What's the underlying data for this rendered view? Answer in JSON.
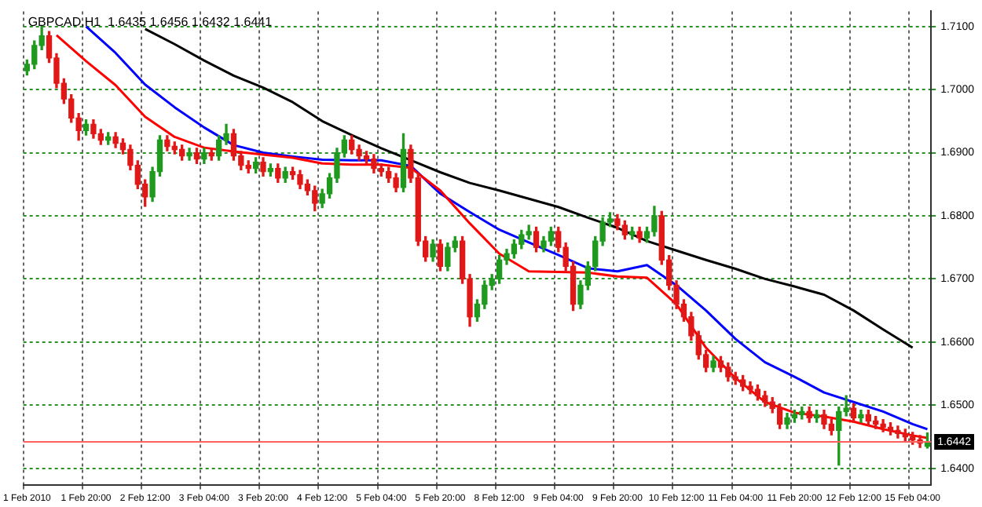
{
  "chart_data": {
    "type": "candlestick",
    "title": "GBPCAD,H1  1.6435 1.6456 1.6432 1.6441",
    "categories": [
      "1 Feb 2010",
      null,
      null,
      null,
      null,
      null,
      null,
      null,
      "1 Feb 20:00",
      null,
      null,
      null,
      null,
      null,
      null,
      null,
      "2 Feb 12:00",
      null,
      null,
      null,
      null,
      null,
      null,
      null,
      "3 Feb 04:00",
      null,
      null,
      null,
      null,
      null,
      null,
      null,
      "3 Feb 20:00",
      null,
      null,
      null,
      null,
      null,
      null,
      null,
      "4 Feb 12:00",
      null,
      null,
      null,
      null,
      null,
      null,
      null,
      "5 Feb 04:00",
      null,
      null,
      null,
      null,
      null,
      null,
      null,
      "5 Feb 20:00",
      null,
      null,
      null,
      null,
      null,
      null,
      null,
      "8 Feb 12:00",
      null,
      null,
      null,
      null,
      null,
      null,
      null,
      "9 Feb 04:00",
      null,
      null,
      null,
      null,
      null,
      null,
      null,
      "9 Feb 20:00",
      null,
      null,
      null,
      null,
      null,
      null,
      null,
      "10 Feb 12:00",
      null,
      null,
      null,
      null,
      null,
      null,
      null,
      "11 Feb 04:00",
      null,
      null,
      null,
      null,
      null,
      null,
      null,
      "11 Feb 20:00",
      null,
      null,
      null,
      null,
      null,
      null,
      null,
      "12 Feb 12:00",
      null,
      null,
      null,
      null,
      null,
      null,
      null,
      "15 Feb 04:00",
      null,
      null
    ],
    "ohlc": [
      [
        1.703,
        1.7047,
        1.7023,
        1.704
      ],
      [
        1.704,
        1.7077,
        1.7033,
        1.707
      ],
      [
        1.707,
        1.71,
        1.7063,
        1.7085
      ],
      [
        1.7085,
        1.7092,
        1.7043,
        1.705
      ],
      [
        1.705,
        1.7057,
        1.7003,
        1.701
      ],
      [
        1.701,
        1.7017,
        1.6978,
        1.6985
      ],
      [
        1.6985,
        1.6992,
        1.6948,
        1.6955
      ],
      [
        1.6955,
        1.6962,
        1.692,
        1.6935
      ],
      [
        1.6935,
        1.6952,
        1.6928,
        1.6945
      ],
      [
        1.6945,
        1.6952,
        1.6923,
        1.693
      ],
      [
        1.693,
        1.6937,
        1.6913,
        1.692
      ],
      [
        1.692,
        1.6932,
        1.6913,
        1.6925
      ],
      [
        1.6925,
        1.6932,
        1.6908,
        1.6915
      ],
      [
        1.6915,
        1.6922,
        1.6898,
        1.6905
      ],
      [
        1.6905,
        1.6912,
        1.6873,
        1.688
      ],
      [
        1.688,
        1.6887,
        1.6843,
        1.685
      ],
      [
        1.685,
        1.6857,
        1.6815,
        1.683
      ],
      [
        1.683,
        1.6877,
        1.6823,
        1.687
      ],
      [
        1.687,
        1.6927,
        1.6863,
        1.692
      ],
      [
        1.692,
        1.6927,
        1.6903,
        1.691
      ],
      [
        1.691,
        1.6917,
        1.6898,
        1.6905
      ],
      [
        1.6905,
        1.6912,
        1.6888,
        1.6895
      ],
      [
        1.6895,
        1.6907,
        1.6888,
        1.69
      ],
      [
        1.69,
        1.6907,
        1.6883,
        1.689
      ],
      [
        1.689,
        1.6907,
        1.6883,
        1.69
      ],
      [
        1.69,
        1.6907,
        1.6888,
        1.6895
      ],
      [
        1.6895,
        1.6927,
        1.6888,
        1.692
      ],
      [
        1.692,
        1.6945,
        1.6913,
        1.693
      ],
      [
        1.693,
        1.6937,
        1.6888,
        1.6895
      ],
      [
        1.6895,
        1.6902,
        1.6873,
        1.688
      ],
      [
        1.688,
        1.6887,
        1.6868,
        1.6875
      ],
      [
        1.6875,
        1.6892,
        1.6868,
        1.6885
      ],
      [
        1.6885,
        1.6892,
        1.6863,
        1.687
      ],
      [
        1.687,
        1.6882,
        1.6863,
        1.6875
      ],
      [
        1.6875,
        1.6882,
        1.6853,
        1.686
      ],
      [
        1.686,
        1.6877,
        1.6853,
        1.687
      ],
      [
        1.687,
        1.6877,
        1.6858,
        1.6865
      ],
      [
        1.6865,
        1.6872,
        1.6843,
        1.685
      ],
      [
        1.685,
        1.6857,
        1.6833,
        1.684
      ],
      [
        1.684,
        1.6847,
        1.6808,
        1.682
      ],
      [
        1.682,
        1.6842,
        1.6813,
        1.6835
      ],
      [
        1.6835,
        1.6867,
        1.6828,
        1.686
      ],
      [
        1.686,
        1.6907,
        1.6853,
        1.69
      ],
      [
        1.69,
        1.6927,
        1.6893,
        1.692
      ],
      [
        1.692,
        1.6927,
        1.6898,
        1.6905
      ],
      [
        1.6905,
        1.6912,
        1.6888,
        1.6895
      ],
      [
        1.6895,
        1.6902,
        1.6883,
        1.689
      ],
      [
        1.689,
        1.6897,
        1.6868,
        1.6875
      ],
      [
        1.6875,
        1.6882,
        1.6863,
        1.687
      ],
      [
        1.687,
        1.6877,
        1.6853,
        1.686
      ],
      [
        1.686,
        1.6867,
        1.6838,
        1.6845
      ],
      [
        1.6845,
        1.693,
        1.6838,
        1.6905
      ],
      [
        1.6905,
        1.6912,
        1.6853,
        1.686
      ],
      [
        1.686,
        1.6867,
        1.6753,
        1.676
      ],
      [
        1.676,
        1.6767,
        1.6728,
        1.6735
      ],
      [
        1.6735,
        1.6762,
        1.6728,
        1.6755
      ],
      [
        1.6755,
        1.6762,
        1.6713,
        1.672
      ],
      [
        1.672,
        1.6757,
        1.6713,
        1.675
      ],
      [
        1.675,
        1.6767,
        1.6743,
        1.676
      ],
      [
        1.676,
        1.6767,
        1.6693,
        1.67
      ],
      [
        1.67,
        1.6707,
        1.6625,
        1.664
      ],
      [
        1.664,
        1.6667,
        1.6633,
        1.666
      ],
      [
        1.666,
        1.6697,
        1.6653,
        1.669
      ],
      [
        1.669,
        1.6707,
        1.6683,
        1.67
      ],
      [
        1.67,
        1.6737,
        1.6693,
        1.673
      ],
      [
        1.673,
        1.6747,
        1.6723,
        1.674
      ],
      [
        1.674,
        1.6762,
        1.6733,
        1.6755
      ],
      [
        1.6755,
        1.6777,
        1.6748,
        1.677
      ],
      [
        1.677,
        1.6785,
        1.6763,
        1.6775
      ],
      [
        1.6775,
        1.6782,
        1.6743,
        1.675
      ],
      [
        1.675,
        1.6767,
        1.6743,
        1.676
      ],
      [
        1.676,
        1.6782,
        1.6753,
        1.6775
      ],
      [
        1.6775,
        1.6782,
        1.6743,
        1.675
      ],
      [
        1.675,
        1.6757,
        1.6713,
        1.672
      ],
      [
        1.672,
        1.6727,
        1.665,
        1.666
      ],
      [
        1.666,
        1.6697,
        1.6653,
        1.669
      ],
      [
        1.669,
        1.6727,
        1.6683,
        1.672
      ],
      [
        1.672,
        1.6767,
        1.6713,
        1.676
      ],
      [
        1.676,
        1.6797,
        1.6753,
        1.679
      ],
      [
        1.679,
        1.6805,
        1.6783,
        1.6795
      ],
      [
        1.6795,
        1.6802,
        1.6778,
        1.6785
      ],
      [
        1.6785,
        1.6792,
        1.6763,
        1.677
      ],
      [
        1.677,
        1.6782,
        1.6763,
        1.6775
      ],
      [
        1.6775,
        1.6782,
        1.6758,
        1.6765
      ],
      [
        1.6765,
        1.6782,
        1.6758,
        1.6775
      ],
      [
        1.6775,
        1.6815,
        1.6768,
        1.68
      ],
      [
        1.68,
        1.6807,
        1.6723,
        1.673
      ],
      [
        1.673,
        1.6737,
        1.6683,
        1.669
      ],
      [
        1.669,
        1.6697,
        1.6653,
        1.666
      ],
      [
        1.666,
        1.6667,
        1.6633,
        1.664
      ],
      [
        1.664,
        1.6647,
        1.6603,
        1.661
      ],
      [
        1.661,
        1.6617,
        1.6573,
        1.658
      ],
      [
        1.658,
        1.6587,
        1.6553,
        1.656
      ],
      [
        1.656,
        1.6577,
        1.6553,
        1.657
      ],
      [
        1.657,
        1.6577,
        1.6553,
        1.656
      ],
      [
        1.656,
        1.6567,
        1.6538,
        1.6545
      ],
      [
        1.6545,
        1.6552,
        1.6533,
        1.654
      ],
      [
        1.654,
        1.6547,
        1.6523,
        1.653
      ],
      [
        1.653,
        1.6537,
        1.6518,
        1.6525
      ],
      [
        1.6525,
        1.6532,
        1.6508,
        1.6515
      ],
      [
        1.6515,
        1.6522,
        1.6498,
        1.6505
      ],
      [
        1.6505,
        1.6512,
        1.6488,
        1.6495
      ],
      [
        1.6495,
        1.6502,
        1.6463,
        1.647
      ],
      [
        1.647,
        1.6487,
        1.6463,
        1.648
      ],
      [
        1.648,
        1.6492,
        1.6473,
        1.6485
      ],
      [
        1.6485,
        1.6497,
        1.6478,
        1.649
      ],
      [
        1.649,
        1.6497,
        1.6473,
        1.648
      ],
      [
        1.648,
        1.6492,
        1.6473,
        1.6485
      ],
      [
        1.6485,
        1.6492,
        1.6463,
        1.647
      ],
      [
        1.647,
        1.6477,
        1.6453,
        1.646
      ],
      [
        1.646,
        1.6497,
        1.6405,
        1.649
      ],
      [
        1.649,
        1.6515,
        1.6483,
        1.6495
      ],
      [
        1.6495,
        1.6502,
        1.6473,
        1.648
      ],
      [
        1.648,
        1.6492,
        1.6473,
        1.6485
      ],
      [
        1.6485,
        1.6492,
        1.6468,
        1.6475
      ],
      [
        1.6475,
        1.6482,
        1.6463,
        1.647
      ],
      [
        1.647,
        1.6477,
        1.6458,
        1.6465
      ],
      [
        1.6465,
        1.6472,
        1.6453,
        1.646
      ],
      [
        1.646,
        1.6467,
        1.6448,
        1.6455
      ],
      [
        1.6455,
        1.6462,
        1.6443,
        1.645
      ],
      [
        1.645,
        1.6457,
        1.6438,
        1.6445
      ],
      [
        1.6445,
        1.6452,
        1.6433,
        1.644
      ],
      [
        1.6435,
        1.6456,
        1.6432,
        1.6441
      ]
    ],
    "series": [
      {
        "type": "line",
        "color": "#ff0000",
        "values": [
          null,
          null,
          null,
          null,
          1.7086,
          null,
          null,
          null,
          1.7045,
          null,
          null,
          null,
          1.7007,
          null,
          null,
          null,
          1.6957,
          null,
          null,
          null,
          1.6925,
          null,
          null,
          null,
          1.6908,
          null,
          null,
          null,
          1.6902,
          null,
          null,
          null,
          1.6897,
          null,
          null,
          null,
          1.6892,
          null,
          null,
          null,
          1.6883,
          null,
          null,
          null,
          1.6881,
          null,
          null,
          null,
          1.6881,
          null,
          null,
          null,
          1.6876,
          null,
          null,
          null,
          1.684,
          null,
          null,
          null,
          1.6788,
          null,
          null,
          null,
          1.674,
          null,
          null,
          null,
          1.6712,
          null,
          null,
          null,
          1.6711,
          null,
          null,
          null,
          1.671,
          null,
          null,
          null,
          1.6704,
          null,
          null,
          null,
          1.6702,
          null,
          null,
          null,
          1.666,
          null,
          null,
          null,
          1.6591,
          null,
          null,
          null,
          1.6543,
          null,
          null,
          null,
          1.6505,
          null,
          null,
          null,
          1.6488,
          null,
          null,
          null,
          1.6482,
          null,
          null,
          null,
          1.6474,
          null,
          null,
          null,
          1.6462,
          null,
          null,
          null,
          1.6452,
          null,
          1.6448
        ]
      },
      {
        "type": "line",
        "color": "#0000ff",
        "values": [
          null,
          null,
          null,
          null,
          null,
          null,
          null,
          null,
          1.71,
          null,
          null,
          null,
          1.7058,
          null,
          null,
          null,
          1.7008,
          null,
          null,
          null,
          1.6972,
          null,
          null,
          null,
          1.694,
          null,
          null,
          null,
          1.6912,
          null,
          null,
          null,
          1.69,
          null,
          null,
          null,
          1.6894,
          null,
          null,
          null,
          1.6889,
          null,
          null,
          null,
          1.6888,
          null,
          null,
          null,
          1.6888,
          null,
          null,
          null,
          1.6879,
          null,
          null,
          null,
          1.6835,
          null,
          null,
          null,
          1.6806,
          null,
          null,
          null,
          1.6778,
          null,
          null,
          null,
          1.6758,
          null,
          null,
          null,
          1.6738,
          null,
          null,
          null,
          1.6717,
          null,
          null,
          null,
          1.6712,
          null,
          null,
          null,
          1.6722,
          null,
          null,
          null,
          1.669,
          null,
          null,
          null,
          1.665,
          null,
          null,
          null,
          1.6605,
          null,
          null,
          null,
          1.6568,
          null,
          null,
          null,
          1.6545,
          null,
          null,
          null,
          1.652,
          null,
          null,
          null,
          1.6505,
          null,
          null,
          null,
          1.649,
          null,
          null,
          null,
          1.647,
          null,
          1.6462
        ]
      },
      {
        "type": "line",
        "color": "#000000",
        "values": [
          null,
          null,
          null,
          null,
          null,
          null,
          null,
          null,
          null,
          null,
          null,
          null,
          null,
          null,
          null,
          null,
          1.7096,
          null,
          null,
          null,
          1.7072,
          null,
          null,
          null,
          1.7046,
          null,
          null,
          null,
          1.7022,
          null,
          null,
          null,
          1.7003,
          null,
          null,
          null,
          1.698,
          null,
          null,
          null,
          1.695,
          null,
          null,
          null,
          1.6928,
          null,
          null,
          null,
          1.6907,
          null,
          null,
          null,
          1.6888,
          null,
          null,
          null,
          1.6869,
          null,
          null,
          null,
          1.6852,
          null,
          null,
          null,
          1.684,
          null,
          null,
          null,
          1.6827,
          null,
          null,
          null,
          1.6814,
          null,
          null,
          null,
          1.6797,
          null,
          null,
          null,
          1.6781,
          null,
          null,
          null,
          1.676,
          null,
          null,
          null,
          1.6745,
          null,
          null,
          null,
          1.673,
          null,
          null,
          null,
          1.6716,
          null,
          null,
          null,
          1.67,
          null,
          null,
          null,
          1.6688,
          null,
          null,
          null,
          1.6675,
          null,
          null,
          null,
          1.665,
          null,
          null,
          null,
          1.662,
          null,
          null,
          null,
          1.6591,
          null,
          null
        ]
      }
    ],
    "ylim": [
      1.6374,
      1.7124
    ],
    "yticks": [
      {
        "value": 1.64,
        "label": "1.6400"
      },
      {
        "value": 1.65,
        "label": "1.6500"
      },
      {
        "value": 1.66,
        "label": "1.6600"
      },
      {
        "value": 1.67,
        "label": "1.6700"
      },
      {
        "value": 1.68,
        "label": "1.6800"
      },
      {
        "value": 1.69,
        "label": "1.6900"
      },
      {
        "value": 1.7,
        "label": "1.7000"
      },
      {
        "value": 1.71,
        "label": "1.7100"
      }
    ],
    "ref_lines": [
      {
        "axis": "y",
        "value": 1.6442,
        "label": "1.6442",
        "color": "#ff6060"
      }
    ],
    "grid": true,
    "legend": false,
    "marker": "none",
    "line_style": "solid"
  }
}
